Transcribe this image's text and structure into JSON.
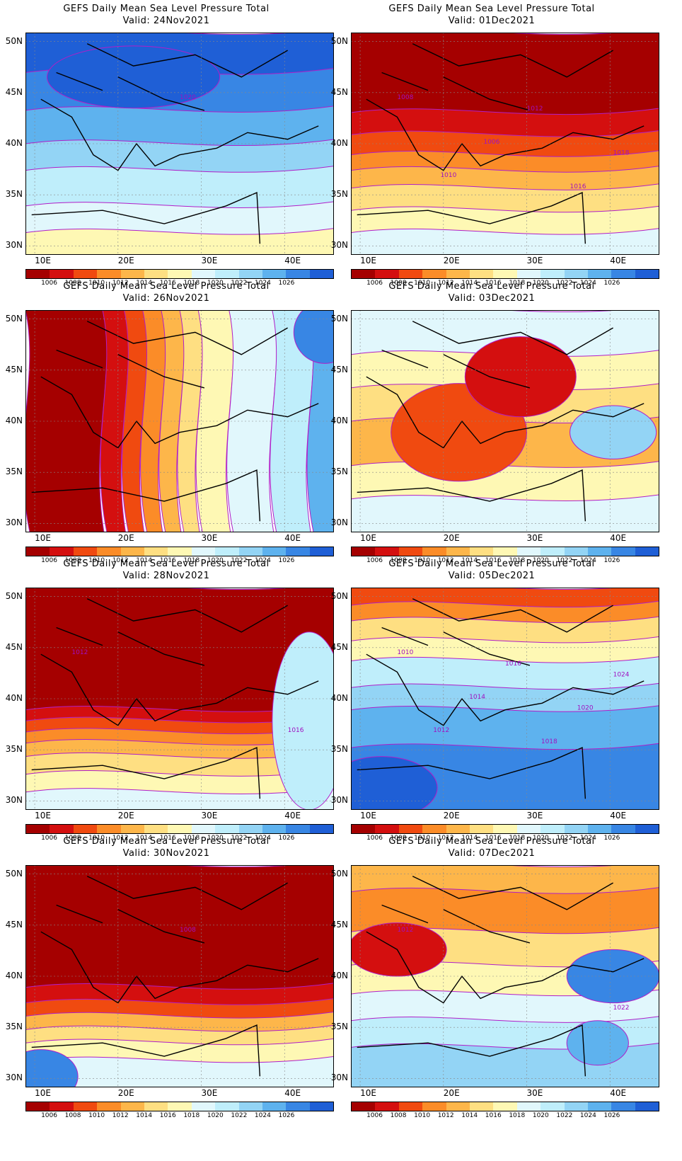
{
  "palette": [
    "#a50000",
    "#d40f0f",
    "#f04a10",
    "#fb8c28",
    "#fdb64a",
    "#fedf82",
    "#fef8b4",
    "#e1f7fc",
    "#bfeefb",
    "#93d4f5",
    "#5eb2ee",
    "#3886e4",
    "#1f5fd6"
  ],
  "colorbar_ticks": [
    "1006",
    "1008",
    "1010",
    "1012",
    "1014",
    "1016",
    "1018",
    "1020",
    "1022",
    "1024",
    "1026"
  ],
  "lat_labels": [
    "50N",
    "45N",
    "40N",
    "35N",
    "30N"
  ],
  "lon_labels": [
    "10E",
    "20E",
    "30E",
    "40E"
  ],
  "panels": [
    {
      "title": "GEFS Daily Mean Sea Level Pressure Total",
      "valid": "Valid: 24Nov2021",
      "labels": [
        "1020"
      ]
    },
    {
      "title": "GEFS Daily Mean Sea Level Pressure Total",
      "valid": "Valid: 01Dec2021",
      "labels": [
        "1008",
        "1010",
        "1006",
        "1012",
        "1016",
        "1018"
      ]
    },
    {
      "title": "GEFS Daily Mean Sea Level Pressure Total",
      "valid": "Valid: 26Nov2021",
      "labels": []
    },
    {
      "title": "GEFS Daily Mean Sea Level Pressure Total",
      "valid": "Valid: 03Dec2021",
      "labels": []
    },
    {
      "title": "GEFS Daily Mean Sea Level Pressure Total",
      "valid": "Valid: 28Nov2021",
      "labels": [
        "1012",
        "1016"
      ]
    },
    {
      "title": "GEFS Daily Mean Sea Level Pressure Total",
      "valid": "Valid: 05Dec2021",
      "labels": [
        "1010",
        "1012",
        "1014",
        "1016",
        "1018",
        "1020",
        "1024"
      ]
    },
    {
      "title": "GEFS Daily Mean Sea Level Pressure Total",
      "valid": "Valid: 30Nov2021",
      "labels": [
        "1008"
      ]
    },
    {
      "title": "GEFS Daily Mean Sea Level Pressure Total",
      "valid": "Valid: 07Dec2021",
      "labels": [
        "1012",
        "1022"
      ]
    }
  ]
}
